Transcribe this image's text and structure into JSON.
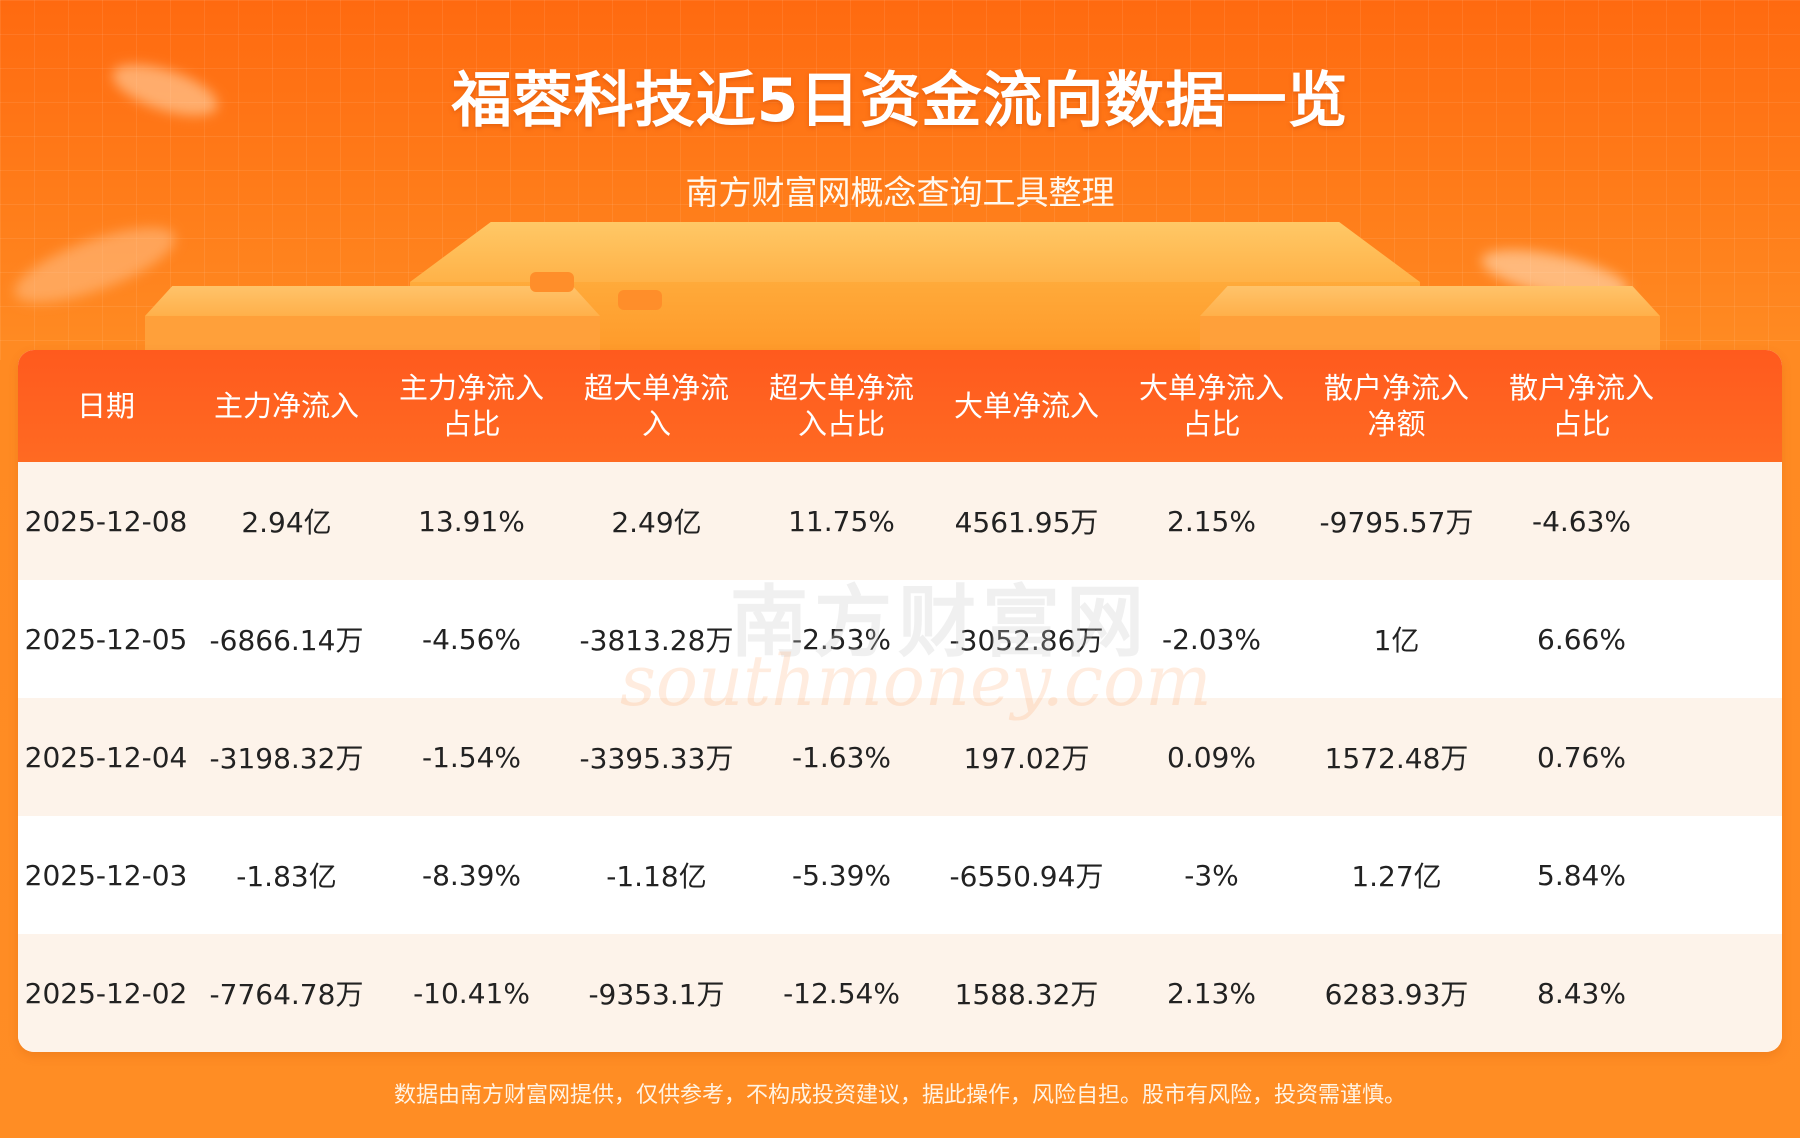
{
  "header": {
    "title": "福蓉科技近5日资金流向数据一览",
    "subtitle": "南方财富网概念查询工具整理"
  },
  "watermark": {
    "cn": "南方财富网",
    "en": "southmoney.com"
  },
  "table": {
    "headers": [
      "日期",
      "主力净流入",
      "主力净流入\n占比",
      "超大单净流\n入",
      "超大单净流\n入占比",
      "大单净流入",
      "大单净流入\n占比",
      "散户净流入\n净额",
      "散户净流入\n占比"
    ],
    "rows": [
      [
        "2025-12-08",
        "2.94亿",
        "13.91%",
        "2.49亿",
        "11.75%",
        "4561.95万",
        "2.15%",
        "-9795.57万",
        "-4.63%"
      ],
      [
        "2025-12-05",
        "-6866.14万",
        "-4.56%",
        "-3813.28万",
        "-2.53%",
        "-3052.86万",
        "-2.03%",
        "1亿",
        "6.66%"
      ],
      [
        "2025-12-04",
        "-3198.32万",
        "-1.54%",
        "-3395.33万",
        "-1.63%",
        "197.02万",
        "0.09%",
        "1572.48万",
        "0.76%"
      ],
      [
        "2025-12-03",
        "-1.83亿",
        "-8.39%",
        "-1.18亿",
        "-5.39%",
        "-6550.94万",
        "-3%",
        "1.27亿",
        "5.84%"
      ],
      [
        "2025-12-02",
        "-7764.78万",
        "-10.41%",
        "-9353.1万",
        "-12.54%",
        "1588.32万",
        "2.13%",
        "6283.93万",
        "8.43%"
      ]
    ]
  },
  "footer": {
    "disclaimer": "数据由南方财富网提供，仅供参考，不构成投资建议，据此操作，风险自担。股市有风险，投资需谨慎。"
  },
  "colors": {
    "background": "#ff7d1a",
    "header_bar": "#ff5a1e",
    "alt_row": "#fdf3ea",
    "text": "#222222"
  }
}
